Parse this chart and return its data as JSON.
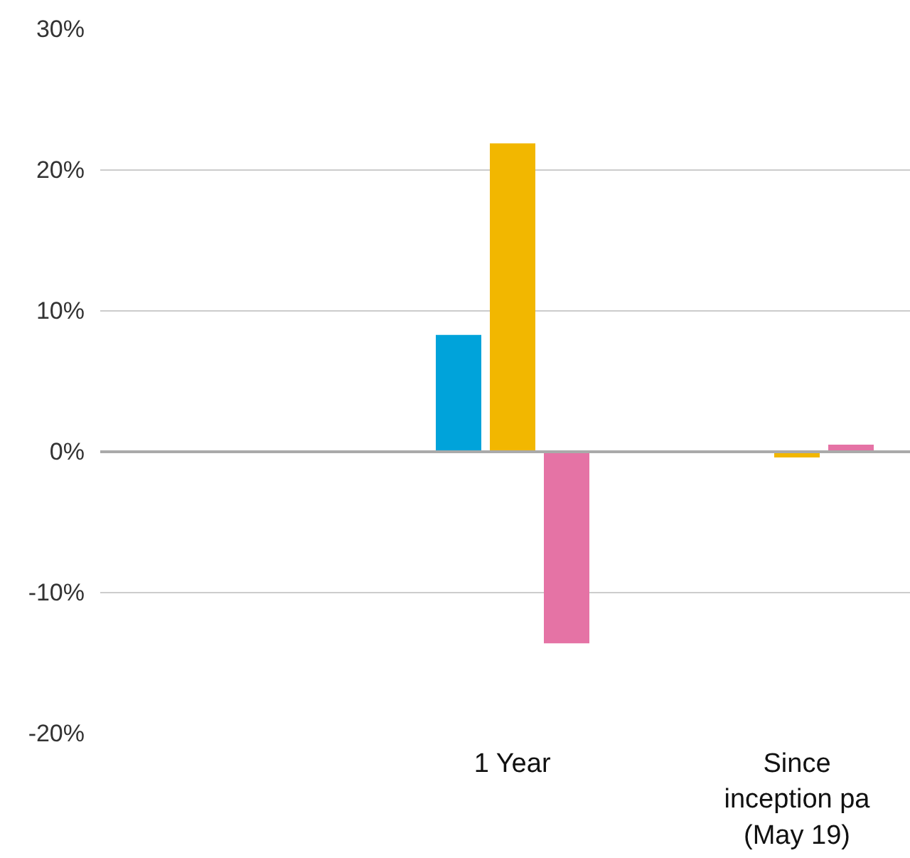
{
  "chart_data": {
    "type": "bar",
    "categories": [
      null,
      "1 Year",
      "Since inception pa (May 19)"
    ],
    "series": [
      {
        "color": "#00a3da",
        "values": [
          null,
          8.3,
          0
        ]
      },
      {
        "color": "#f2b700",
        "values": [
          null,
          21.9,
          -0.4
        ]
      },
      {
        "color": "#e573a5",
        "values": [
          null,
          -13.6,
          0.5
        ]
      }
    ],
    "ylim": [
      -20,
      30
    ],
    "yticks": [
      {
        "value": -20,
        "label": "-20%"
      },
      {
        "value": -10,
        "label": "-10%"
      },
      {
        "value": 0,
        "label": "0%"
      },
      {
        "value": 10,
        "label": "10%"
      },
      {
        "value": 20,
        "label": "20%"
      },
      {
        "value": 30,
        "label": "30%"
      }
    ],
    "grid": "y"
  }
}
